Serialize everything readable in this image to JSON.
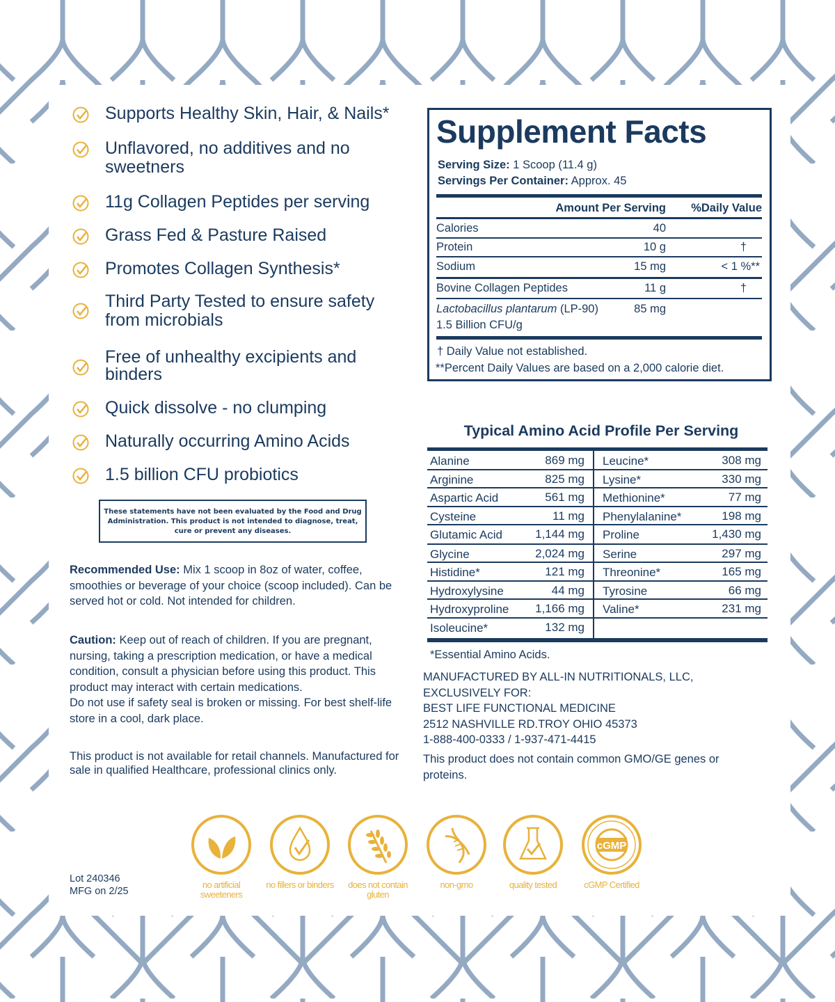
{
  "colors": {
    "navy": "#1b3a5e",
    "gold": "#e8b23b",
    "pattern": "#94a9c2"
  },
  "benefits": [
    "Supports Healthy Skin, Hair, & Nails*",
    "Unflavored, no additives and no sweetners",
    "11g Collagen Peptides per serving",
    "Grass Fed & Pasture Raised",
    "Promotes Collagen Synthesis*",
    "Third Party Tested to ensure safety from microbials",
    "Free of unhealthy excipients and binders",
    "Quick dissolve - no clumping",
    "Naturally occurring Amino Acids",
    "1.5 billion CFU probiotics"
  ],
  "fda_disclaimer": "These statements have not been evaluated by the Food and Drug Administration. This product is not intended to diagnose, treat, cure or prevent any diseases.",
  "recommended_use": {
    "label": "Recommended Use:",
    "text": " Mix 1 scoop in 8oz of water, coffee, smoothies or beverage of your choice (scoop included). Can be served hot or cold. Not intended for children."
  },
  "caution": {
    "label": "Caution:",
    "text": " Keep out of reach of children. If you are pregnant, nursing, taking a prescription medication, or have a medical condition, consult a physician before using this product. This product may interact with certain medications.",
    "text2": "Do not use if safety seal is broken or missing. For best shelf-life store in a cool, dark place."
  },
  "retail_note": "This product is not available for retail channels. Manufactured for sale in qualified Healthcare, professional clinics only.",
  "lot": "Lot 240346",
  "mfg": "MFG on 2/25",
  "supplement_facts": {
    "title": "Supplement Facts",
    "serving_size_label": "Serving Size:",
    "serving_size": " 1 Scoop (11.4 g)",
    "servings_label": "Servings Per Container:",
    "servings": " Approx. 45",
    "header_amount": "Amount Per Serving",
    "header_dv": "%Daily Value",
    "rows": [
      {
        "name": "Calories",
        "amount": "40",
        "dv": ""
      },
      {
        "name": "Protein",
        "amount": "10 g",
        "dv": "†"
      },
      {
        "name": "Sodium",
        "amount": "15 mg",
        "dv": "< 1 %**"
      },
      {
        "name": "Bovine Collagen Peptides",
        "amount": "11 g",
        "dv": "†"
      }
    ],
    "probiotic_name": "Lactobacillus plantarum",
    "probiotic_strain": " (LP-90)",
    "probiotic_amount": "85 mg",
    "probiotic_cfu": "1.5 Billion CFU/g",
    "footnote1": "† Daily Value not established.",
    "footnote2": "**Percent Daily Values are based on a 2,000 calorie diet."
  },
  "amino": {
    "title": "Typical Amino Acid Profile Per Serving",
    "left": [
      {
        "name": "Alanine",
        "amount": "869 mg"
      },
      {
        "name": "Arginine",
        "amount": "825 mg"
      },
      {
        "name": "Aspartic Acid",
        "amount": "561 mg"
      },
      {
        "name": "Cysteine",
        "amount": "11 mg"
      },
      {
        "name": "Glutamic Acid",
        "amount": "1,144 mg"
      },
      {
        "name": "Glycine",
        "amount": "2,024 mg"
      },
      {
        "name": "Histidine*",
        "amount": "121 mg"
      },
      {
        "name": "Hydroxylysine",
        "amount": "44 mg"
      },
      {
        "name": "Hydroxyproline",
        "amount": "1,166 mg"
      },
      {
        "name": "Isoleucine*",
        "amount": "132 mg"
      }
    ],
    "right": [
      {
        "name": "Leucine*",
        "amount": "308 mg"
      },
      {
        "name": "Lysine*",
        "amount": "330 mg"
      },
      {
        "name": "Methionine*",
        "amount": "77 mg"
      },
      {
        "name": "Phenylalanine*",
        "amount": "198 mg"
      },
      {
        "name": "Proline",
        "amount": "1,430 mg"
      },
      {
        "name": "Serine",
        "amount": "297 mg"
      },
      {
        "name": "Threonine*",
        "amount": "165 mg"
      },
      {
        "name": "Tyrosine",
        "amount": "66 mg"
      },
      {
        "name": "Valine*",
        "amount": "231 mg"
      }
    ],
    "note": "*Essential Amino Acids."
  },
  "manufacturer": [
    "MANUFACTURED BY ALL-IN NUTRITIONALS, LLC,",
    "EXCLUSIVELY FOR:",
    "BEST LIFE FUNCTIONAL MEDICINE",
    "2512 NASHVILLE RD.TROY OHIO 45373",
    "1-888-400-0333 / 1-937-471-4415"
  ],
  "gmo_note": "This product does not contain common GMO/GE genes or proteins.",
  "badges": [
    {
      "icon": "leaf-icon",
      "label": "no artificial sweeteners"
    },
    {
      "icon": "droplet-check-icon",
      "label": "no fillers or binders"
    },
    {
      "icon": "wheat-icon",
      "label": "does not contain gluten"
    },
    {
      "icon": "dna-icon",
      "label": "non-gmo"
    },
    {
      "icon": "flask-check-icon",
      "label": "quality tested"
    },
    {
      "icon": "cgmp-seal-icon",
      "label": "cGMP Certified",
      "seal_text": "cGMP",
      "seal_ring": "CERTIFIED GOOD MANUFACTURING PRACTICE"
    }
  ]
}
